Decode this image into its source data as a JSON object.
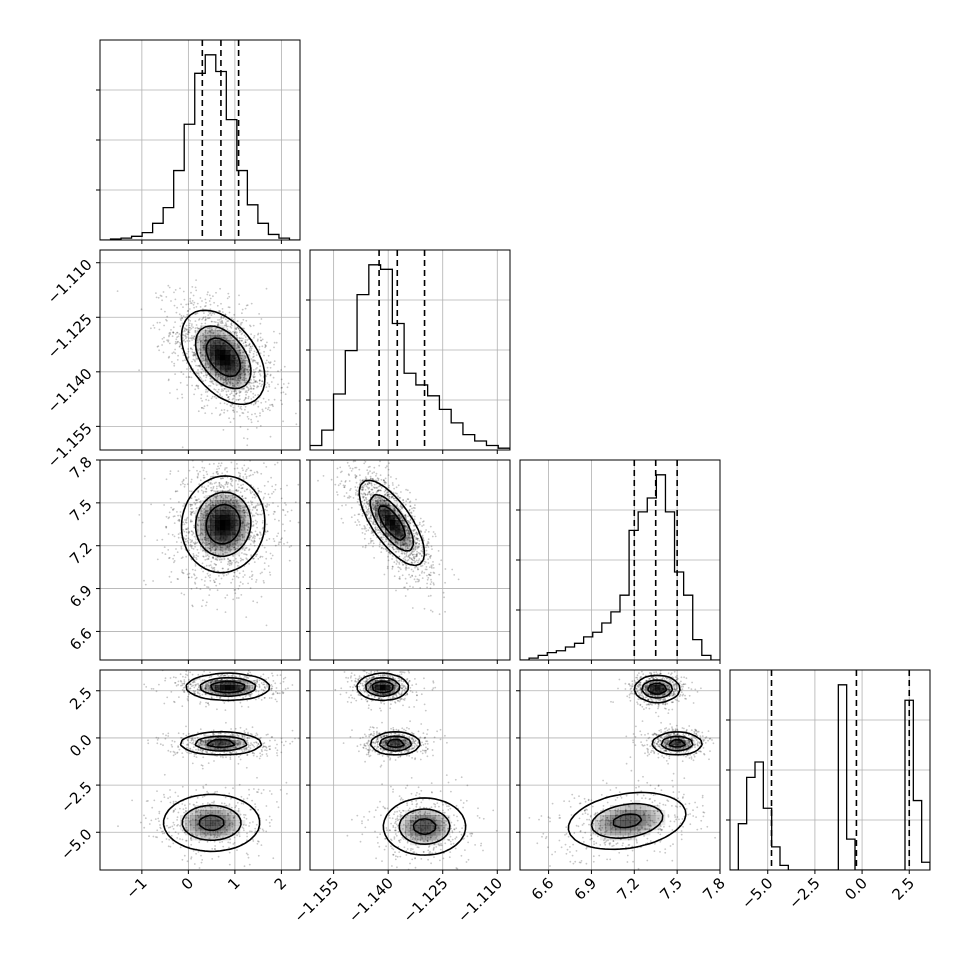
{
  "chart_data": {
    "type": "corner",
    "params": 4,
    "grid": true,
    "axes": [
      {
        "range": [
          -1.9,
          2.4
        ],
        "ticks": [
          -1,
          0,
          1,
          2
        ],
        "tick_labels": [
          "−1",
          "0",
          "1",
          "2"
        ],
        "quantiles": [
          0.3,
          0.7,
          1.08
        ]
      },
      {
        "range": [
          -1.1615,
          -1.1065
        ],
        "ticks": [
          -1.155,
          -1.14,
          -1.125,
          -1.11
        ],
        "tick_labels": [
          "−1.155",
          "−1.140",
          "−1.125",
          "−1.110"
        ],
        "quantiles": [
          -1.1425,
          -1.1375,
          -1.13
        ]
      },
      {
        "range": [
          6.4,
          7.8
        ],
        "ticks": [
          6.6,
          6.9,
          7.2,
          7.5,
          7.8
        ],
        "tick_labels": [
          "6.6",
          "6.9",
          "7.2",
          "7.5",
          "7.8"
        ],
        "quantiles": [
          7.2,
          7.35,
          7.5
        ]
      },
      {
        "range": [
          -7.0,
          3.6
        ],
        "ticks": [
          -5.0,
          -2.5,
          0.0,
          2.5
        ],
        "tick_labels": [
          "−5.0",
          "−2.5",
          "0.0",
          "2.5"
        ],
        "quantiles": [
          -4.8,
          -0.3,
          2.5
        ]
      }
    ],
    "histograms": [
      {
        "counts": [
          0,
          1,
          2,
          4,
          8,
          18,
          35,
          75,
          125,
          180,
          200,
          182,
          130,
          75,
          38,
          18,
          6,
          2,
          0
        ]
      },
      {
        "counts": [
          5,
          22,
          62,
          110,
          172,
          205,
          200,
          140,
          85,
          72,
          60,
          45,
          30,
          17,
          10,
          5,
          2
        ]
      },
      {
        "counts": [
          0,
          2,
          5,
          8,
          10,
          14,
          18,
          25,
          30,
          40,
          52,
          70,
          140,
          160,
          175,
          200,
          160,
          95,
          70,
          22,
          5,
          0
        ]
      },
      {
        "counts": [
          0,
          30,
          60,
          70,
          40,
          15,
          3,
          0,
          0,
          0,
          0,
          0,
          0,
          120,
          20,
          0,
          0,
          0,
          0,
          0,
          0,
          110,
          45,
          5
        ]
      }
    ],
    "pairs": [
      {
        "row": 1,
        "col": 0,
        "blobs": [
          {
            "cx": 0.75,
            "cy": -1.136,
            "sx": 0.45,
            "sy": 0.0065,
            "rho": -0.45,
            "w": 1
          }
        ]
      },
      {
        "row": 2,
        "col": 0,
        "blobs": [
          {
            "cx": 0.75,
            "cy": 7.35,
            "sx": 0.45,
            "sy": 0.17,
            "rho": 0.05,
            "w": 1
          }
        ]
      },
      {
        "row": 2,
        "col": 1,
        "blobs": [
          {
            "cx": -1.139,
            "cy": 7.36,
            "sx": 0.0045,
            "sy": 0.15,
            "rho": -0.72,
            "w": 1
          }
        ]
      },
      {
        "row": 3,
        "col": 0,
        "blobs": [
          {
            "cx": 0.85,
            "cy": 2.7,
            "sx": 0.45,
            "sy": 0.35,
            "rho": 0,
            "w": 0.45
          },
          {
            "cx": 0.7,
            "cy": -0.3,
            "sx": 0.45,
            "sy": 0.3,
            "rho": 0,
            "w": 0.4
          },
          {
            "cx": 0.5,
            "cy": -4.5,
            "sx": 0.55,
            "sy": 0.8,
            "rho": 0,
            "w": 0.35
          }
        ]
      },
      {
        "row": 3,
        "col": 1,
        "blobs": [
          {
            "cx": -1.1415,
            "cy": 2.7,
            "sx": 0.0035,
            "sy": 0.35,
            "rho": 0,
            "w": 0.45
          },
          {
            "cx": -1.138,
            "cy": -0.3,
            "sx": 0.0035,
            "sy": 0.3,
            "rho": 0,
            "w": 0.4
          },
          {
            "cx": -1.13,
            "cy": -4.7,
            "sx": 0.006,
            "sy": 0.8,
            "rho": 0,
            "w": 0.35
          }
        ]
      },
      {
        "row": 3,
        "col": 2,
        "blobs": [
          {
            "cx": 7.36,
            "cy": 2.6,
            "sx": 0.08,
            "sy": 0.35,
            "rho": 0,
            "w": 0.45
          },
          {
            "cx": 7.5,
            "cy": -0.3,
            "sx": 0.09,
            "sy": 0.3,
            "rho": 0,
            "w": 0.4
          },
          {
            "cx": 7.15,
            "cy": -4.4,
            "sx": 0.22,
            "sy": 0.8,
            "rho": 0.25,
            "w": 0.35
          }
        ]
      }
    ]
  }
}
